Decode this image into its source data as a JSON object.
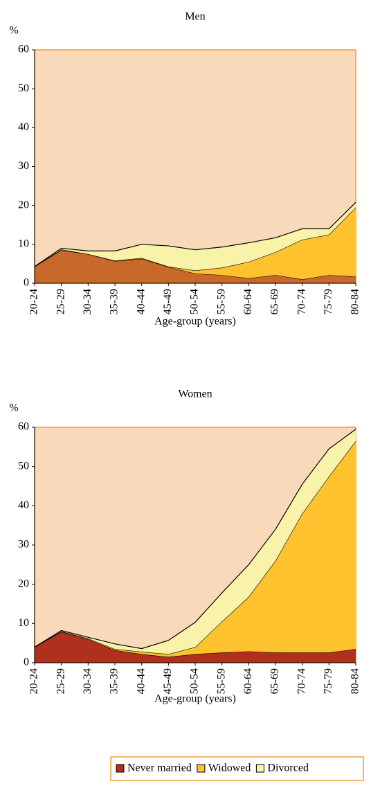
{
  "chart_data": [
    {
      "type": "area",
      "stacked": true,
      "title": "Men",
      "y_label": "%",
      "x_label": "Age-group (years)",
      "categories": [
        "20-24",
        "25-29",
        "30-34",
        "35-39",
        "40-44",
        "45-49",
        "50-54",
        "55-59",
        "60-64",
        "65-69",
        "70-74",
        "75-79",
        "80-84"
      ],
      "ylim": [
        0,
        60
      ],
      "yticks": [
        0,
        10,
        20,
        30,
        40,
        50,
        60
      ],
      "grid": false,
      "series": [
        {
          "name": "Never married",
          "color": "#c8682a",
          "values": [
            4.3,
            8.5,
            7.5,
            5.7,
            6.3,
            4.2,
            2.5,
            2.1,
            1.3,
            2.1,
            1.0,
            2.1,
            1.7
          ]
        },
        {
          "name": "Widowed",
          "color": "#fdc22e",
          "values": [
            0,
            0.2,
            0,
            0.1,
            0.2,
            0.1,
            0.8,
            1.9,
            4.2,
            5.9,
            10.2,
            10.4,
            17.8
          ]
        },
        {
          "name": "Divorced",
          "color": "#f8f3a8",
          "values": [
            0,
            0.3,
            0.8,
            2.5,
            3.5,
            5.3,
            5.3,
            5.3,
            4.9,
            3.7,
            2.8,
            1.5,
            1.3
          ]
        }
      ]
    },
    {
      "type": "area",
      "stacked": true,
      "title": "Women",
      "y_label": "%",
      "x_label": "Age-group (years)",
      "categories": [
        "20-24",
        "25-29",
        "30-34",
        "35-39",
        "40-44",
        "45-49",
        "50-54",
        "55-59",
        "60-64",
        "65-69",
        "70-74",
        "75-79",
        "80-84"
      ],
      "ylim": [
        0,
        60
      ],
      "yticks": [
        0,
        10,
        20,
        30,
        40,
        50,
        60
      ],
      "grid": false,
      "series": [
        {
          "name": "Never married",
          "color": "#b0301e",
          "values": [
            4.0,
            7.9,
            6.0,
            3.2,
            2.2,
            1.5,
            2.2,
            2.6,
            2.9,
            2.6,
            2.6,
            2.6,
            3.5
          ]
        },
        {
          "name": "Widowed",
          "color": "#fdc22e",
          "values": [
            0,
            0.1,
            0.2,
            0.3,
            0.6,
            0.7,
            1.8,
            7.9,
            13.9,
            23.4,
            35.4,
            44.9,
            53.0
          ]
        },
        {
          "name": "Divorced",
          "color": "#f8f3a8",
          "values": [
            0,
            0.2,
            0.3,
            1.3,
            0.8,
            3.5,
            6.3,
            7.3,
            8.2,
            8.0,
            7.5,
            7.0,
            3.0
          ]
        }
      ]
    }
  ]
}
